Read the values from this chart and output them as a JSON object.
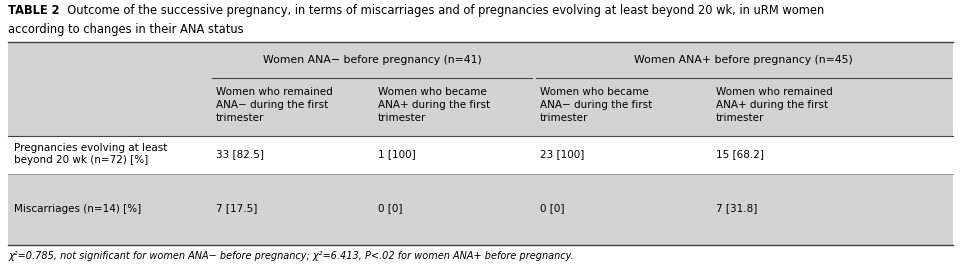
{
  "title_bold": "TABLE 2",
  "title_rest": "  Outcome of the successive pregnancy, in terms of miscarriages and of pregnancies evolving at least beyond 20 wk, in uRM women",
  "title_line2": "according to changes in their ANA status",
  "bg_color": "#d3d3d3",
  "white_bg": "#ffffff",
  "header1_group": "Women ANA− before pregnancy (n=41)",
  "header2_group": "Women ANA+ before pregnancy (n=45)",
  "col_headers": [
    "Women who remained\nANA− during the first\ntrimester",
    "Women who became\nANA+ during the first\ntrimester",
    "Women who became\nANA− during the first\ntrimester",
    "Women who remained\nANA+ during the first\ntrimester"
  ],
  "row_labels": [
    "Pregnancies evolving at least\nbeyond 20 wk (n=72) [%]",
    "Miscarriages (n=14) [%]"
  ],
  "data": [
    [
      "33 [82.5]",
      "1 [100]",
      "23 [100]",
      "15 [68.2]"
    ],
    [
      "7 [17.5]",
      "0 [0]",
      "0 [0]",
      "7 [31.8]"
    ]
  ],
  "footnote": "χ²=0.785, not significant for women ANA− before pregnancy; χ²=6.413, P<.02 for women ANA+ before pregnancy.",
  "font_size": 7.8
}
